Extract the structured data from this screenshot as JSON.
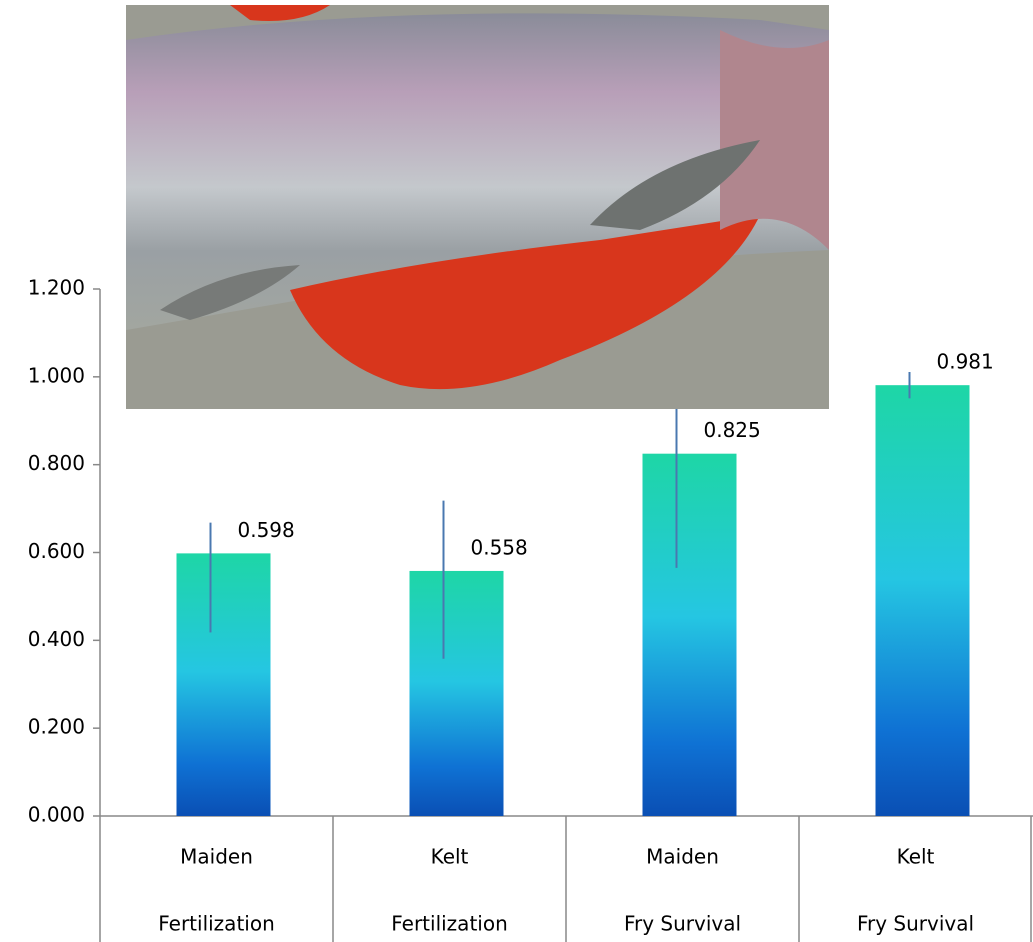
{
  "chart_data": {
    "type": "bar",
    "categories": [
      [
        "Maiden",
        "Fertilization"
      ],
      [
        "Kelt",
        "Fertilization"
      ],
      [
        "Maiden",
        "Fry Survival"
      ],
      [
        "Kelt",
        "Fry Survival"
      ]
    ],
    "values": [
      0.598,
      0.558,
      0.825,
      0.981
    ],
    "error_low": [
      0.18,
      0.2,
      0.26,
      0.03
    ],
    "error_high": [
      0.07,
      0.16,
      0.11,
      0.03
    ],
    "ylim": [
      0,
      1.2
    ],
    "yticks": [
      {
        "value": 0,
        "label": "0.000"
      },
      {
        "value": 0.2,
        "label": "0.200"
      },
      {
        "value": 0.4,
        "label": "0.400"
      },
      {
        "value": 0.6,
        "label": "0.600"
      },
      {
        "value": 0.8,
        "label": "0.800"
      },
      {
        "value": 1.0,
        "label": "1.000"
      },
      {
        "value": 1.2,
        "label": "1.200"
      }
    ]
  }
}
